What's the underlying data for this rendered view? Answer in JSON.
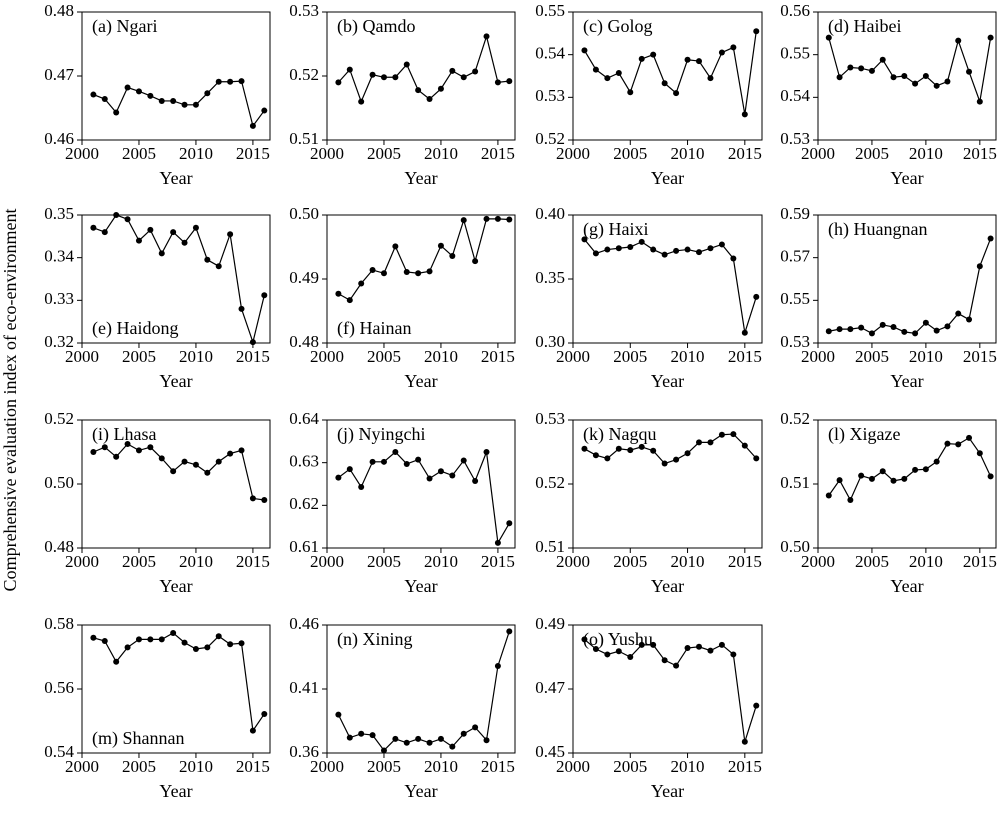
{
  "y_label": "Comprehensive evaluation index of eco-environment",
  "chart_data": [
    {
      "type": "line",
      "title": "(a) Ngari",
      "x_label": "Year",
      "x": [
        2001,
        2002,
        2003,
        2004,
        2005,
        2006,
        2007,
        2008,
        2009,
        2010,
        2011,
        2012,
        2013,
        2014,
        2015,
        2016
      ],
      "xlim": [
        2000,
        2016.5
      ],
      "xticks": [
        2000,
        2005,
        2010,
        2015
      ],
      "ylim": [
        0.46,
        0.48
      ],
      "yticks": [
        0.46,
        0.47,
        0.48
      ],
      "series": [
        {
          "name": "Ngari",
          "color": "#000000",
          "values": [
            0.4671,
            0.4664,
            0.4643,
            0.4682,
            0.4676,
            0.4669,
            0.4661,
            0.4661,
            0.4655,
            0.4655,
            0.4673,
            0.4691,
            0.4691,
            0.4692,
            0.4622,
            0.4646
          ]
        }
      ]
    },
    {
      "type": "line",
      "title": "(b) Qamdo",
      "x_label": "Year",
      "x": [
        2001,
        2002,
        2003,
        2004,
        2005,
        2006,
        2007,
        2008,
        2009,
        2010,
        2011,
        2012,
        2013,
        2014,
        2015,
        2016
      ],
      "xlim": [
        2000,
        2016.5
      ],
      "xticks": [
        2000,
        2005,
        2010,
        2015
      ],
      "ylim": [
        0.51,
        0.53
      ],
      "yticks": [
        0.51,
        0.52,
        0.53
      ],
      "series": [
        {
          "name": "Qamdo",
          "color": "#000000",
          "values": [
            0.519,
            0.521,
            0.516,
            0.5202,
            0.5198,
            0.5198,
            0.5218,
            0.5178,
            0.5164,
            0.518,
            0.5208,
            0.5198,
            0.5207,
            0.5262,
            0.519,
            0.5192
          ]
        }
      ]
    },
    {
      "type": "line",
      "title": "(c) Golog",
      "x_label": "Year",
      "x": [
        2001,
        2002,
        2003,
        2004,
        2005,
        2006,
        2007,
        2008,
        2009,
        2010,
        2011,
        2012,
        2013,
        2014,
        2015,
        2016
      ],
      "xlim": [
        2000,
        2016.5
      ],
      "xticks": [
        2000,
        2005,
        2010,
        2015
      ],
      "ylim": [
        0.52,
        0.55
      ],
      "yticks": [
        0.52,
        0.53,
        0.54,
        0.55
      ],
      "series": [
        {
          "name": "Golog",
          "color": "#000000",
          "values": [
            0.541,
            0.5365,
            0.5345,
            0.5357,
            0.5312,
            0.539,
            0.54,
            0.5333,
            0.531,
            0.5388,
            0.5385,
            0.5345,
            0.5405,
            0.5417,
            0.526,
            0.5455
          ]
        }
      ]
    },
    {
      "type": "line",
      "title": "(d) Haibei",
      "x_label": "Year",
      "x": [
        2001,
        2002,
        2003,
        2004,
        2005,
        2006,
        2007,
        2008,
        2009,
        2010,
        2011,
        2012,
        2013,
        2014,
        2015,
        2016
      ],
      "xlim": [
        2000,
        2016.5
      ],
      "xticks": [
        2000,
        2005,
        2010,
        2015
      ],
      "ylim": [
        0.53,
        0.56
      ],
      "yticks": [
        0.53,
        0.54,
        0.55,
        0.56
      ],
      "series": [
        {
          "name": "Haibei",
          "color": "#000000",
          "values": [
            0.554,
            0.5447,
            0.547,
            0.5468,
            0.5462,
            0.5488,
            0.5447,
            0.545,
            0.5432,
            0.545,
            0.5427,
            0.5437,
            0.5533,
            0.546,
            0.539,
            0.554
          ]
        }
      ]
    },
    {
      "type": "line",
      "title": "(e) Haidong",
      "x_label": "Year",
      "x": [
        2001,
        2002,
        2003,
        2004,
        2005,
        2006,
        2007,
        2008,
        2009,
        2010,
        2011,
        2012,
        2013,
        2014,
        2015,
        2016
      ],
      "xlim": [
        2000,
        2016.5
      ],
      "xticks": [
        2000,
        2005,
        2010,
        2015
      ],
      "ylim": [
        0.32,
        0.35
      ],
      "yticks": [
        0.32,
        0.33,
        0.34,
        0.35
      ],
      "series": [
        {
          "name": "Haidong",
          "color": "#000000",
          "values": [
            0.347,
            0.346,
            0.35,
            0.349,
            0.344,
            0.3465,
            0.341,
            0.346,
            0.3435,
            0.347,
            0.3395,
            0.338,
            0.3455,
            0.328,
            0.3202,
            0.3312
          ]
        }
      ]
    },
    {
      "type": "line",
      "title": "(f) Hainan",
      "x_label": "Year",
      "x": [
        2001,
        2002,
        2003,
        2004,
        2005,
        2006,
        2007,
        2008,
        2009,
        2010,
        2011,
        2012,
        2013,
        2014,
        2015,
        2016
      ],
      "xlim": [
        2000,
        2016.5
      ],
      "xticks": [
        2000,
        2005,
        2010,
        2015
      ],
      "ylim": [
        0.48,
        0.5
      ],
      "yticks": [
        0.48,
        0.49,
        {
          "value": 0.5,
          "label": "0.50"
        }
      ],
      "series": [
        {
          "name": "Hainan",
          "color": "#000000",
          "values": [
            0.4877,
            0.4867,
            0.4893,
            0.4914,
            0.4909,
            0.4951,
            0.4911,
            0.4909,
            0.4912,
            0.4952,
            0.4936,
            0.4992,
            0.4928,
            0.4994,
            0.4994,
            0.4993
          ]
        }
      ]
    },
    {
      "type": "line",
      "title": "(g) Haixi",
      "x_label": "Year",
      "x": [
        2001,
        2002,
        2003,
        2004,
        2005,
        2006,
        2007,
        2008,
        2009,
        2010,
        2011,
        2012,
        2013,
        2014,
        2015,
        2016
      ],
      "xlim": [
        2000,
        2016.5
      ],
      "xticks": [
        2000,
        2005,
        2010,
        2015
      ],
      "ylim": [
        0.3,
        0.4
      ],
      "yticks": [
        {
          "value": 0.3,
          "label": "0.30"
        },
        0.35,
        {
          "value": 0.4,
          "label": "0.40"
        }
      ],
      "series": [
        {
          "name": "Haixi",
          "color": "#000000",
          "values": [
            0.381,
            0.37,
            0.373,
            0.374,
            0.375,
            0.379,
            0.373,
            0.369,
            0.372,
            0.373,
            0.371,
            0.374,
            0.377,
            0.366,
            0.308,
            0.336
          ]
        }
      ]
    },
    {
      "type": "line",
      "title": "(h) Huangnan",
      "x_label": "Year",
      "x": [
        2001,
        2002,
        2003,
        2004,
        2005,
        2006,
        2007,
        2008,
        2009,
        2010,
        2011,
        2012,
        2013,
        2014,
        2015,
        2016
      ],
      "xlim": [
        2000,
        2016.5
      ],
      "xticks": [
        2000,
        2005,
        2010,
        2015
      ],
      "ylim": [
        0.53,
        0.59
      ],
      "yticks": [
        0.53,
        0.55,
        0.57,
        0.59
      ],
      "series": [
        {
          "name": "Huangnan",
          "color": "#000000",
          "values": [
            0.5355,
            0.5365,
            0.5365,
            0.5372,
            0.5345,
            0.5385,
            0.5375,
            0.5352,
            0.5345,
            0.5395,
            0.5358,
            0.5378,
            0.5438,
            0.541,
            0.566,
            0.579
          ]
        }
      ]
    },
    {
      "type": "line",
      "title": "(i) Lhasa",
      "x_label": "Year",
      "x": [
        2001,
        2002,
        2003,
        2004,
        2005,
        2006,
        2007,
        2008,
        2009,
        2010,
        2011,
        2012,
        2013,
        2014,
        2015,
        2016
      ],
      "xlim": [
        2000,
        2016.5
      ],
      "xticks": [
        2000,
        2005,
        2010,
        2015
      ],
      "ylim": [
        0.48,
        0.52
      ],
      "yticks": [
        0.48,
        {
          "value": 0.5,
          "label": "0.50"
        },
        0.52
      ],
      "series": [
        {
          "name": "Lhasa",
          "color": "#000000",
          "values": [
            0.51,
            0.5115,
            0.5085,
            0.5125,
            0.5105,
            0.5115,
            0.508,
            0.504,
            0.507,
            0.506,
            0.5035,
            0.507,
            0.5095,
            0.5105,
            0.4955,
            0.495
          ]
        }
      ]
    },
    {
      "type": "line",
      "title": "(j) Nyingchi",
      "x_label": "Year",
      "x": [
        2001,
        2002,
        2003,
        2004,
        2005,
        2006,
        2007,
        2008,
        2009,
        2010,
        2011,
        2012,
        2013,
        2014,
        2015,
        2016
      ],
      "xlim": [
        2000,
        2016.5
      ],
      "xticks": [
        2000,
        2005,
        2010,
        2015
      ],
      "ylim": [
        0.61,
        0.64
      ],
      "yticks": [
        0.61,
        0.62,
        0.63,
        0.64
      ],
      "series": [
        {
          "name": "Nyingchi",
          "color": "#000000",
          "values": [
            0.6265,
            0.6285,
            0.6243,
            0.6302,
            0.6302,
            0.6325,
            0.6297,
            0.6307,
            0.6263,
            0.628,
            0.627,
            0.6305,
            0.6257,
            0.6325,
            0.6112,
            0.6158
          ]
        }
      ]
    },
    {
      "type": "line",
      "title": "(k) Nagqu",
      "x_label": "Year",
      "x": [
        2001,
        2002,
        2003,
        2004,
        2005,
        2006,
        2007,
        2008,
        2009,
        2010,
        2011,
        2012,
        2013,
        2014,
        2015,
        2016
      ],
      "xlim": [
        2000,
        2016.5
      ],
      "xticks": [
        2000,
        2005,
        2010,
        2015
      ],
      "ylim": [
        0.51,
        0.53
      ],
      "yticks": [
        0.51,
        0.52,
        0.53
      ],
      "series": [
        {
          "name": "Nagqu",
          "color": "#000000",
          "values": [
            0.5255,
            0.5245,
            0.524,
            0.5255,
            0.5253,
            0.5258,
            0.5252,
            0.5232,
            0.5238,
            0.5248,
            0.5265,
            0.5265,
            0.5277,
            0.5278,
            0.526,
            0.524
          ]
        }
      ]
    },
    {
      "type": "line",
      "title": "(l) Xigaze",
      "x_label": "Year",
      "x": [
        2001,
        2002,
        2003,
        2004,
        2005,
        2006,
        2007,
        2008,
        2009,
        2010,
        2011,
        2012,
        2013,
        2014,
        2015,
        2016
      ],
      "xlim": [
        2000,
        2016.5
      ],
      "xticks": [
        2000,
        2005,
        2010,
        2015
      ],
      "ylim": [
        0.5,
        0.52
      ],
      "yticks": [
        {
          "value": 0.5,
          "label": "0.50"
        },
        0.51,
        0.52
      ],
      "series": [
        {
          "name": "Xigaze",
          "color": "#000000",
          "values": [
            0.5082,
            0.5106,
            0.5075,
            0.5113,
            0.5108,
            0.512,
            0.5105,
            0.5108,
            0.5122,
            0.5123,
            0.5135,
            0.5163,
            0.5162,
            0.5172,
            0.5148,
            0.5112
          ]
        }
      ]
    },
    {
      "type": "line",
      "title": "(m) Shannan",
      "x_label": "Year",
      "x": [
        2001,
        2002,
        2003,
        2004,
        2005,
        2006,
        2007,
        2008,
        2009,
        2010,
        2011,
        2012,
        2013,
        2014,
        2015,
        2016
      ],
      "xlim": [
        2000,
        2016.5
      ],
      "xticks": [
        2000,
        2005,
        2010,
        2015
      ],
      "ylim": [
        0.54,
        0.58
      ],
      "yticks": [
        0.54,
        0.56,
        0.58
      ],
      "series": [
        {
          "name": "Shannan",
          "color": "#000000",
          "values": [
            0.576,
            0.575,
            0.5685,
            0.573,
            0.5755,
            0.5755,
            0.5755,
            0.5775,
            0.5745,
            0.5725,
            0.573,
            0.5765,
            0.574,
            0.5743,
            0.547,
            0.5522
          ]
        }
      ]
    },
    {
      "type": "line",
      "title": "(n) Xining",
      "x_label": "Year",
      "x": [
        2001,
        2002,
        2003,
        2004,
        2005,
        2006,
        2007,
        2008,
        2009,
        2010,
        2011,
        2012,
        2013,
        2014,
        2015,
        2016
      ],
      "xlim": [
        2000,
        2016.5
      ],
      "xticks": [
        2000,
        2005,
        2010,
        2015
      ],
      "ylim": [
        0.36,
        0.46
      ],
      "yticks": [
        0.36,
        0.41,
        0.46
      ],
      "series": [
        {
          "name": "Xining",
          "color": "#000000",
          "values": [
            0.39,
            0.372,
            0.375,
            0.374,
            0.362,
            0.371,
            0.368,
            0.371,
            0.368,
            0.371,
            0.365,
            0.375,
            0.38,
            0.37,
            0.428,
            0.455
          ]
        }
      ]
    },
    {
      "type": "line",
      "title": "(o) Yushu",
      "x_label": "Year",
      "x": [
        2001,
        2002,
        2003,
        2004,
        2005,
        2006,
        2007,
        2008,
        2009,
        2010,
        2011,
        2012,
        2013,
        2014,
        2015,
        2016
      ],
      "xlim": [
        2000,
        2016.5
      ],
      "xticks": [
        2000,
        2005,
        2010,
        2015
      ],
      "ylim": [
        0.45,
        0.49
      ],
      "yticks": [
        0.45,
        0.47,
        0.49
      ],
      "series": [
        {
          "name": "Yushu",
          "color": "#000000",
          "values": [
            0.4855,
            0.4825,
            0.4808,
            0.4818,
            0.48,
            0.4838,
            0.4838,
            0.479,
            0.4773,
            0.4828,
            0.4832,
            0.482,
            0.4838,
            0.4808,
            0.4535,
            0.4648
          ]
        }
      ]
    }
  ]
}
